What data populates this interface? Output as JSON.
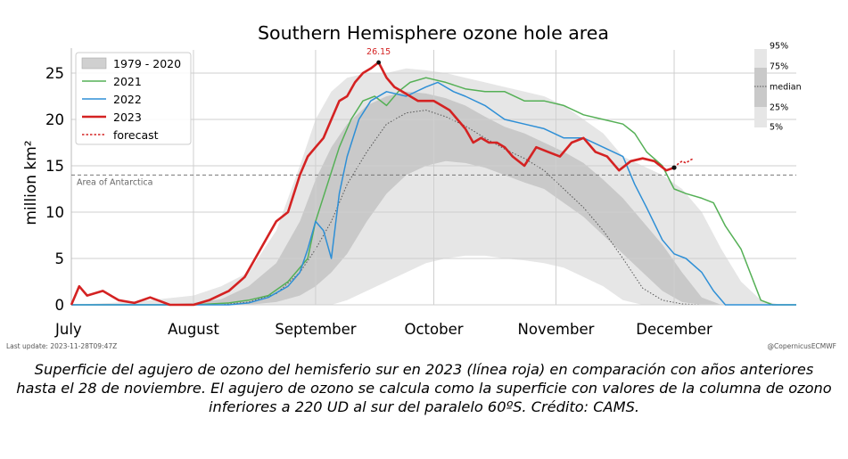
{
  "chart_data": {
    "type": "area",
    "title": "Southern Hemisphere ozone hole area",
    "ylabel": "million km²",
    "ylim": [
      0,
      27.5
    ],
    "yticks": [
      0,
      5,
      10,
      15,
      20,
      25
    ],
    "x_months": [
      "July",
      "August",
      "September",
      "October",
      "November",
      "December"
    ],
    "x_month_start_day": [
      0,
      31,
      62,
      92,
      123,
      153
    ],
    "xlim": [
      0,
      184
    ],
    "grid": true,
    "legend_placement": "top-left",
    "legend": [
      {
        "label": "1979 - 2020",
        "kind": "band",
        "color": "#d0d0d0"
      },
      {
        "label": "2021",
        "kind": "line",
        "color": "#55b056"
      },
      {
        "label": "2022",
        "kind": "line",
        "color": "#2e8fd6"
      },
      {
        "label": "2023",
        "kind": "line",
        "color": "#d42222"
      },
      {
        "label": "forecast",
        "kind": "dashed",
        "color": "#d42222"
      }
    ],
    "percentile_legend": [
      "95%",
      "75%",
      "median",
      "25%",
      "5%"
    ],
    "reference_line": {
      "value": 14,
      "label": "Area of Antarctica"
    },
    "peak_annotation": {
      "day": 78,
      "value": 26.15,
      "label": "26.15"
    },
    "climatology_1979_2020": {
      "days": [
        0,
        10,
        20,
        31,
        38,
        45,
        52,
        58,
        62,
        66,
        70,
        75,
        80,
        85,
        90,
        95,
        100,
        105,
        110,
        115,
        120,
        125,
        130,
        135,
        140,
        145,
        150,
        155,
        160,
        165,
        170,
        175,
        180,
        184
      ],
      "p5": [
        0,
        0,
        0,
        0,
        0,
        0,
        0,
        0,
        0,
        0,
        0.5,
        1.5,
        2.5,
        3.5,
        4.5,
        5,
        5.3,
        5.3,
        5,
        4.8,
        4.5,
        4,
        3,
        2,
        0.5,
        0,
        0,
        0,
        0,
        0,
        0,
        0,
        0,
        0
      ],
      "p25": [
        0,
        0,
        0,
        0,
        0,
        0,
        0.3,
        1,
        2,
        3.5,
        5.5,
        9,
        12,
        14,
        15,
        15.5,
        15.3,
        14.8,
        14,
        13.2,
        12.5,
        11,
        9.5,
        7.5,
        5.5,
        3.5,
        1.5,
        0.3,
        0,
        0,
        0,
        0,
        0,
        0
      ],
      "p50": [
        0,
        0,
        0,
        0,
        0,
        0.3,
        1.2,
        3.5,
        6,
        9,
        13,
        16.5,
        19.5,
        20.7,
        21,
        20.3,
        19.3,
        18,
        16.8,
        15.8,
        14.5,
        12.5,
        10.5,
        8,
        5,
        1.8,
        0.5,
        0.1,
        0,
        0,
        0,
        0,
        0,
        0
      ],
      "p75": [
        0,
        0,
        0,
        0.2,
        0.6,
        2,
        4.5,
        9,
        13.5,
        17,
        19.5,
        21.5,
        22.5,
        23,
        22.8,
        22.3,
        21.5,
        20.3,
        19.2,
        18.5,
        17.5,
        16.5,
        15.3,
        13.5,
        11.5,
        9,
        6.5,
        3.5,
        0.8,
        0,
        0,
        0,
        0,
        0
      ],
      "p95": [
        0,
        0.2,
        0.5,
        1,
        2,
        3.5,
        8,
        15,
        20,
        23,
        24.5,
        25,
        25,
        25.5,
        25.3,
        25,
        24.5,
        24,
        23.5,
        23,
        22.5,
        21.5,
        20,
        18.5,
        16,
        15,
        14,
        12.5,
        10,
        6,
        2.5,
        0.5,
        0,
        0
      ]
    },
    "series": [
      {
        "name": "2021",
        "color": "#55b056",
        "days": [
          0,
          20,
          31,
          40,
          45,
          50,
          55,
          60,
          62,
          65,
          68,
          71,
          74,
          77,
          80,
          83,
          86,
          90,
          95,
          100,
          105,
          110,
          115,
          120,
          125,
          130,
          135,
          140,
          143,
          146,
          150,
          153,
          156,
          160,
          163,
          166,
          170,
          175,
          178,
          184
        ],
        "values": [
          0,
          0,
          0,
          0.2,
          0.5,
          1,
          2.5,
          5,
          9,
          13,
          17,
          20,
          22,
          22.5,
          21.5,
          23,
          24,
          24.5,
          24,
          23.3,
          23,
          23,
          22,
          22,
          21.5,
          20.5,
          20,
          19.5,
          18.5,
          16.5,
          15,
          12.5,
          12,
          11.5,
          11,
          8.5,
          6,
          0.5,
          0,
          0
        ]
      },
      {
        "name": "2022",
        "color": "#2e8fd6",
        "days": [
          0,
          20,
          31,
          40,
          45,
          50,
          55,
          58,
          60,
          62,
          64,
          66,
          68,
          70,
          73,
          76,
          80,
          85,
          90,
          93,
          97,
          100,
          105,
          110,
          115,
          120,
          125,
          130,
          135,
          140,
          143,
          146,
          150,
          153,
          156,
          160,
          163,
          166,
          170,
          175,
          184
        ],
        "values": [
          0,
          0,
          0,
          0,
          0.2,
          0.8,
          2,
          3.5,
          6,
          9,
          8,
          5,
          12,
          16,
          20,
          22,
          23,
          22.5,
          23.5,
          24,
          23,
          22.5,
          21.5,
          20,
          19.5,
          19,
          18,
          18,
          17,
          16,
          13,
          10.5,
          7,
          5.5,
          5,
          3.5,
          1.5,
          0,
          0,
          0,
          0
        ]
      },
      {
        "name": "2023",
        "color": "#d42222",
        "days": [
          0,
          2,
          4,
          8,
          12,
          16,
          20,
          25,
          31,
          35,
          40,
          44,
          48,
          52,
          55,
          58,
          60,
          62,
          64,
          66,
          68,
          70,
          72,
          74,
          76,
          78,
          80,
          82,
          84,
          86,
          88,
          90,
          92,
          94,
          96,
          98,
          100,
          102,
          104,
          106,
          108,
          110,
          112,
          115,
          118,
          121,
          124,
          127,
          130,
          133,
          136,
          139,
          142,
          145,
          148,
          151,
          153
        ],
        "values": [
          0,
          2,
          1,
          1.5,
          0.5,
          0.2,
          0.8,
          0,
          0,
          0.5,
          1.5,
          3,
          6,
          9,
          10,
          14,
          16,
          17,
          18,
          20,
          22,
          22.5,
          24,
          25,
          25.5,
          26.15,
          24.5,
          23.5,
          23,
          22.5,
          22,
          22,
          22,
          21.5,
          21,
          20,
          19,
          17.5,
          18,
          17.5,
          17.5,
          17,
          16,
          15,
          17,
          16.5,
          16,
          17.5,
          18,
          16.5,
          16,
          14.5,
          15.5,
          15.8,
          15.5,
          14.5,
          14.8
        ]
      },
      {
        "name": "forecast",
        "color": "#d42222",
        "dashed": true,
        "days": [
          153,
          154,
          155,
          156,
          157,
          158
        ],
        "values": [
          14.8,
          15.2,
          15.5,
          15.3,
          15.6,
          15.8
        ]
      }
    ]
  },
  "footer": {
    "last_update": "Last update: 2023-11-28T09:47Z",
    "credit": "@CopernicusECMWF"
  },
  "caption": {
    "line1": "Superficie del agujero de ozono del hemisferio sur en 2023 (línea roja) en comparación con años anteriores",
    "line2": "hasta el 28 de noviembre. El agujero de ozono se calcula como la superficie con valores de la columna de ozono",
    "line3": "inferiores a 220 UD al sur del paralelo 60ºS. Crédito: CAMS."
  }
}
